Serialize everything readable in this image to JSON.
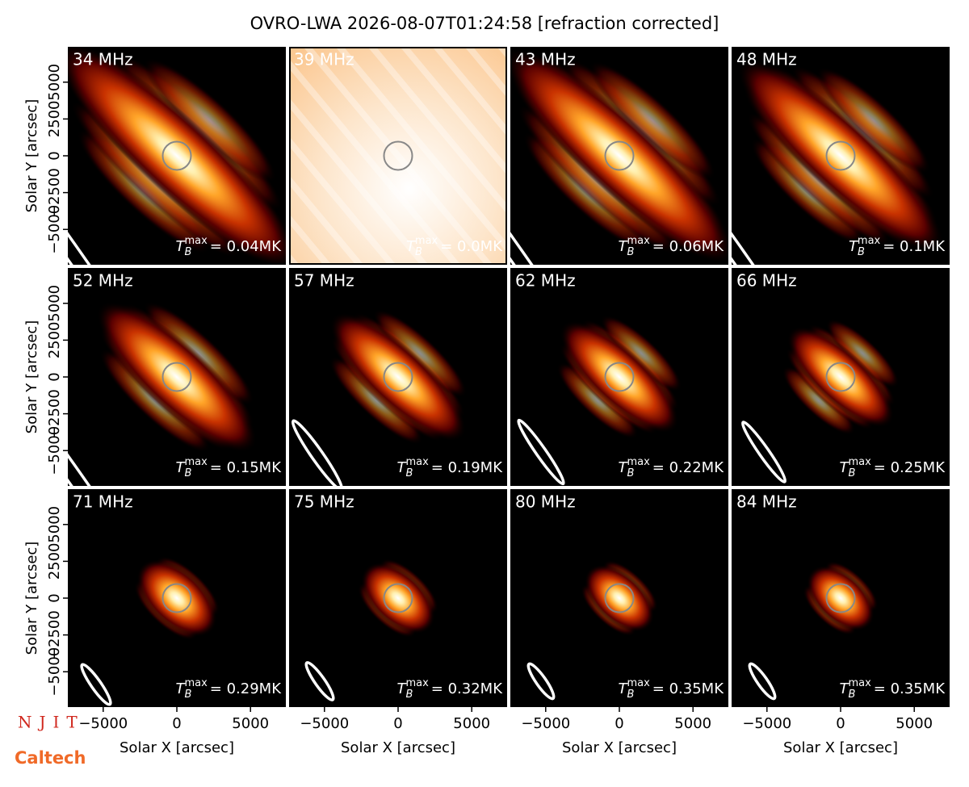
{
  "title": "OVRO-LWA 2026-08-07T01:24:58 [refraction corrected]",
  "axes": {
    "xlabel": "Solar X [arcsec]",
    "ylabel": "Solar Y [arcsec]",
    "xlim": [
      -7400,
      7400
    ],
    "ylim": [
      -7400,
      7400
    ],
    "xticks": [
      {
        "value": -5000,
        "label": "−5000"
      },
      0,
      5000
    ],
    "yticks": [
      {
        "value": -5000,
        "label": "−5000"
      },
      {
        "value": -2500,
        "label": "−2500"
      },
      0,
      2500,
      5000
    ]
  },
  "tb_symbol": {
    "base": "T",
    "sub": "B",
    "sup": "max"
  },
  "chart_data": [
    {
      "type": "image",
      "label": "34 MHz",
      "annotation": "= 0.04MK"
    },
    {
      "type": "image",
      "label": "39 MHz",
      "annotation": "= 0.0MK"
    },
    {
      "type": "image",
      "label": "43 MHz",
      "annotation": "= 0.06MK"
    },
    {
      "type": "image",
      "label": "48 MHz",
      "annotation": "= 0.1MK"
    },
    {
      "type": "image",
      "label": "52 MHz",
      "annotation": "= 0.15MK"
    },
    {
      "type": "image",
      "label": "57 MHz",
      "annotation": "= 0.19MK"
    },
    {
      "type": "image",
      "label": "62 MHz",
      "annotation": "= 0.22MK"
    },
    {
      "type": "image",
      "label": "66 MHz",
      "annotation": "= 0.25MK"
    },
    {
      "type": "image",
      "label": "71 MHz",
      "annotation": "= 0.29MK"
    },
    {
      "type": "image",
      "label": "75 MHz",
      "annotation": "= 0.32MK"
    },
    {
      "type": "image",
      "label": "80 MHz",
      "annotation": "= 0.35MK"
    },
    {
      "type": "image",
      "label": "84 MHz",
      "annotation": "= 0.35MK"
    }
  ],
  "logos": [
    "NJIT",
    "Caltech"
  ]
}
